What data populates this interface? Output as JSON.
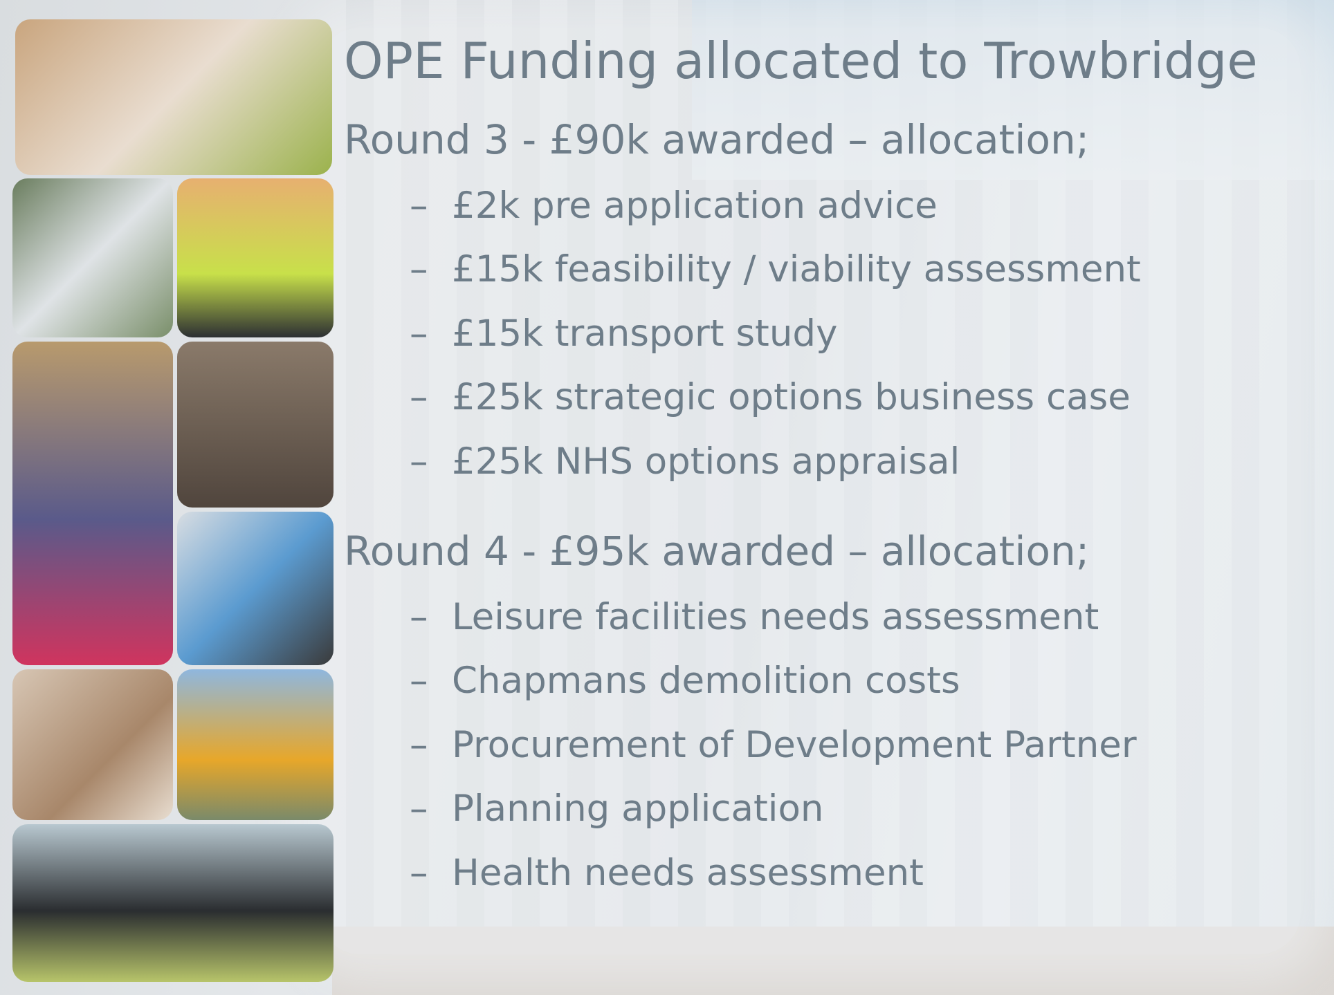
{
  "title": "OPE Funding allocated to Trowbridge",
  "sections": [
    {
      "heading": "Round 3 - £90k awarded – allocation;",
      "items": [
        "£2k pre application advice",
        "£15k feasibility / viability assessment",
        "£15k transport study",
        "£25k strategic options business case",
        "£25k NHS options appraisal"
      ]
    },
    {
      "heading": "Round 4 - £95k awarded – allocation;",
      "items": [
        "Leisure facilities needs assessment",
        "Chapmans demolition costs",
        "Procurement of Development Partner",
        "Planning application",
        "Health needs assessment"
      ]
    }
  ]
}
